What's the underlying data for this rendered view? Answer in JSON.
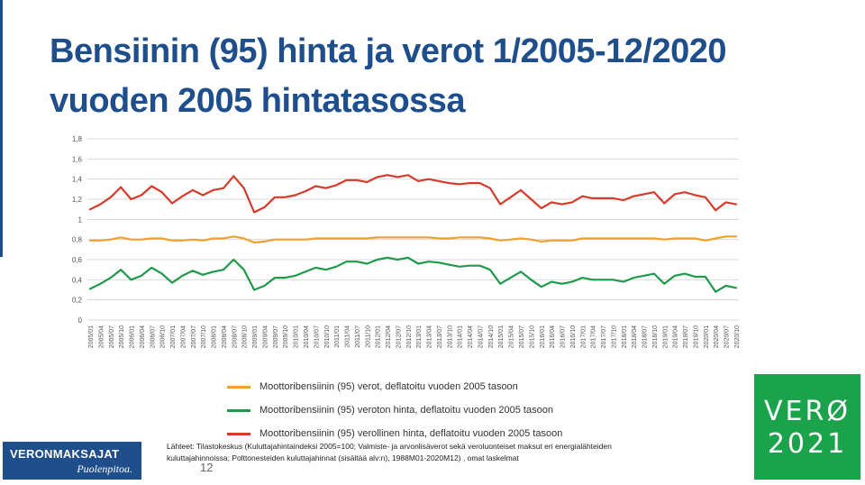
{
  "title": {
    "line1": "Bensiinin (95) hinta ja verot 1/2005-12/2020",
    "line2": "vuoden 2005 hintatasossa"
  },
  "chart_data": {
    "type": "line",
    "ylim": [
      0,
      1.8
    ],
    "yticks": [
      "0",
      "0,2",
      "0,4",
      "0,6",
      "0,8",
      "1",
      "1,2",
      "1,4",
      "1,6",
      "1,8"
    ],
    "grid": true,
    "legend_position": "bottom",
    "x_labels": [
      "2005/01",
      "2005/04",
      "2005/07",
      "2005/10",
      "2006/01",
      "2006/04",
      "2006/07",
      "2006/10",
      "2007/01",
      "2007/04",
      "2007/07",
      "2007/10",
      "2008/01",
      "2008/04",
      "2008/07",
      "2008/10",
      "2009/01",
      "2009/04",
      "2009/07",
      "2009/10",
      "2010/01",
      "2010/04",
      "2010/07",
      "2010/10",
      "2011/01",
      "2011/04",
      "2011/07",
      "2011/10",
      "2012/01",
      "2012/04",
      "2012/07",
      "2012/10",
      "2013/01",
      "2013/04",
      "2013/07",
      "2013/10",
      "2014/01",
      "2014/04",
      "2014/07",
      "2014/10",
      "2015/01",
      "2015/04",
      "2015/07",
      "2015/10",
      "2016/01",
      "2016/04",
      "2016/07",
      "2016/10",
      "2017/01",
      "2017/04",
      "2017/07",
      "2017/10",
      "2018/01",
      "2018/04",
      "2018/07",
      "2018/10",
      "2019/01",
      "2019/04",
      "2019/07",
      "2019/10",
      "2020/01",
      "2020/04",
      "2020/07",
      "2020/10"
    ],
    "series": [
      {
        "name": "Moottoribensiinin (95) verot, deflatoitu vuoden 2005 tasoon",
        "color": "#f0a030",
        "values": [
          0.79,
          0.79,
          0.8,
          0.82,
          0.8,
          0.8,
          0.81,
          0.81,
          0.79,
          0.79,
          0.8,
          0.79,
          0.81,
          0.81,
          0.83,
          0.81,
          0.77,
          0.78,
          0.8,
          0.8,
          0.8,
          0.8,
          0.81,
          0.81,
          0.81,
          0.81,
          0.81,
          0.81,
          0.82,
          0.82,
          0.82,
          0.82,
          0.82,
          0.82,
          0.81,
          0.81,
          0.82,
          0.82,
          0.82,
          0.81,
          0.79,
          0.8,
          0.81,
          0.8,
          0.78,
          0.79,
          0.79,
          0.79,
          0.81,
          0.81,
          0.81,
          0.81,
          0.81,
          0.81,
          0.81,
          0.81,
          0.8,
          0.81,
          0.81,
          0.81,
          0.79,
          0.81,
          0.83,
          0.83
        ]
      },
      {
        "name": "Moottoribensiinin (95) veroton hinta, deflatoitu vuoden 2005 tasoon",
        "color": "#1e9a4a",
        "values": [
          0.31,
          0.36,
          0.42,
          0.5,
          0.4,
          0.44,
          0.52,
          0.46,
          0.37,
          0.44,
          0.49,
          0.45,
          0.48,
          0.5,
          0.6,
          0.5,
          0.3,
          0.34,
          0.42,
          0.42,
          0.44,
          0.48,
          0.52,
          0.5,
          0.53,
          0.58,
          0.58,
          0.56,
          0.6,
          0.62,
          0.6,
          0.62,
          0.56,
          0.58,
          0.57,
          0.55,
          0.53,
          0.54,
          0.54,
          0.5,
          0.36,
          0.42,
          0.48,
          0.4,
          0.33,
          0.38,
          0.36,
          0.38,
          0.42,
          0.4,
          0.4,
          0.4,
          0.38,
          0.42,
          0.44,
          0.46,
          0.36,
          0.44,
          0.46,
          0.43,
          0.43,
          0.28,
          0.34,
          0.32
        ]
      },
      {
        "name": "Moottoribensiinin (95) verollinen hinta, deflatoitu vuoden 2005 tasoon",
        "color": "#d63a2a",
        "values": [
          1.1,
          1.15,
          1.22,
          1.32,
          1.2,
          1.24,
          1.33,
          1.27,
          1.16,
          1.23,
          1.29,
          1.24,
          1.29,
          1.31,
          1.43,
          1.31,
          1.07,
          1.12,
          1.22,
          1.22,
          1.24,
          1.28,
          1.33,
          1.31,
          1.34,
          1.39,
          1.39,
          1.37,
          1.42,
          1.44,
          1.42,
          1.44,
          1.38,
          1.4,
          1.38,
          1.36,
          1.35,
          1.36,
          1.36,
          1.31,
          1.15,
          1.22,
          1.29,
          1.2,
          1.11,
          1.17,
          1.15,
          1.17,
          1.23,
          1.21,
          1.21,
          1.21,
          1.19,
          1.23,
          1.25,
          1.27,
          1.16,
          1.25,
          1.27,
          1.24,
          1.22,
          1.09,
          1.17,
          1.15
        ]
      }
    ]
  },
  "sources": "Lähteet: Tilastokeskus (Kuluttajahintaindeksi 2005=100; Valmiste- ja arvonlisäverot sekä veroluonteiset maksut eri energialähteiden kuluttajahinnoissa; Polttonesteiden kuluttajahinnat (sisältää alv:n), 1988M01-2020M12) , omat laskelmat",
  "logo_left": {
    "line1": "VERONMAKSAJAT",
    "line2": "Puolenpitoa."
  },
  "page_number": "12",
  "logo_right": {
    "line1": "VERØ",
    "line2": "2021"
  }
}
